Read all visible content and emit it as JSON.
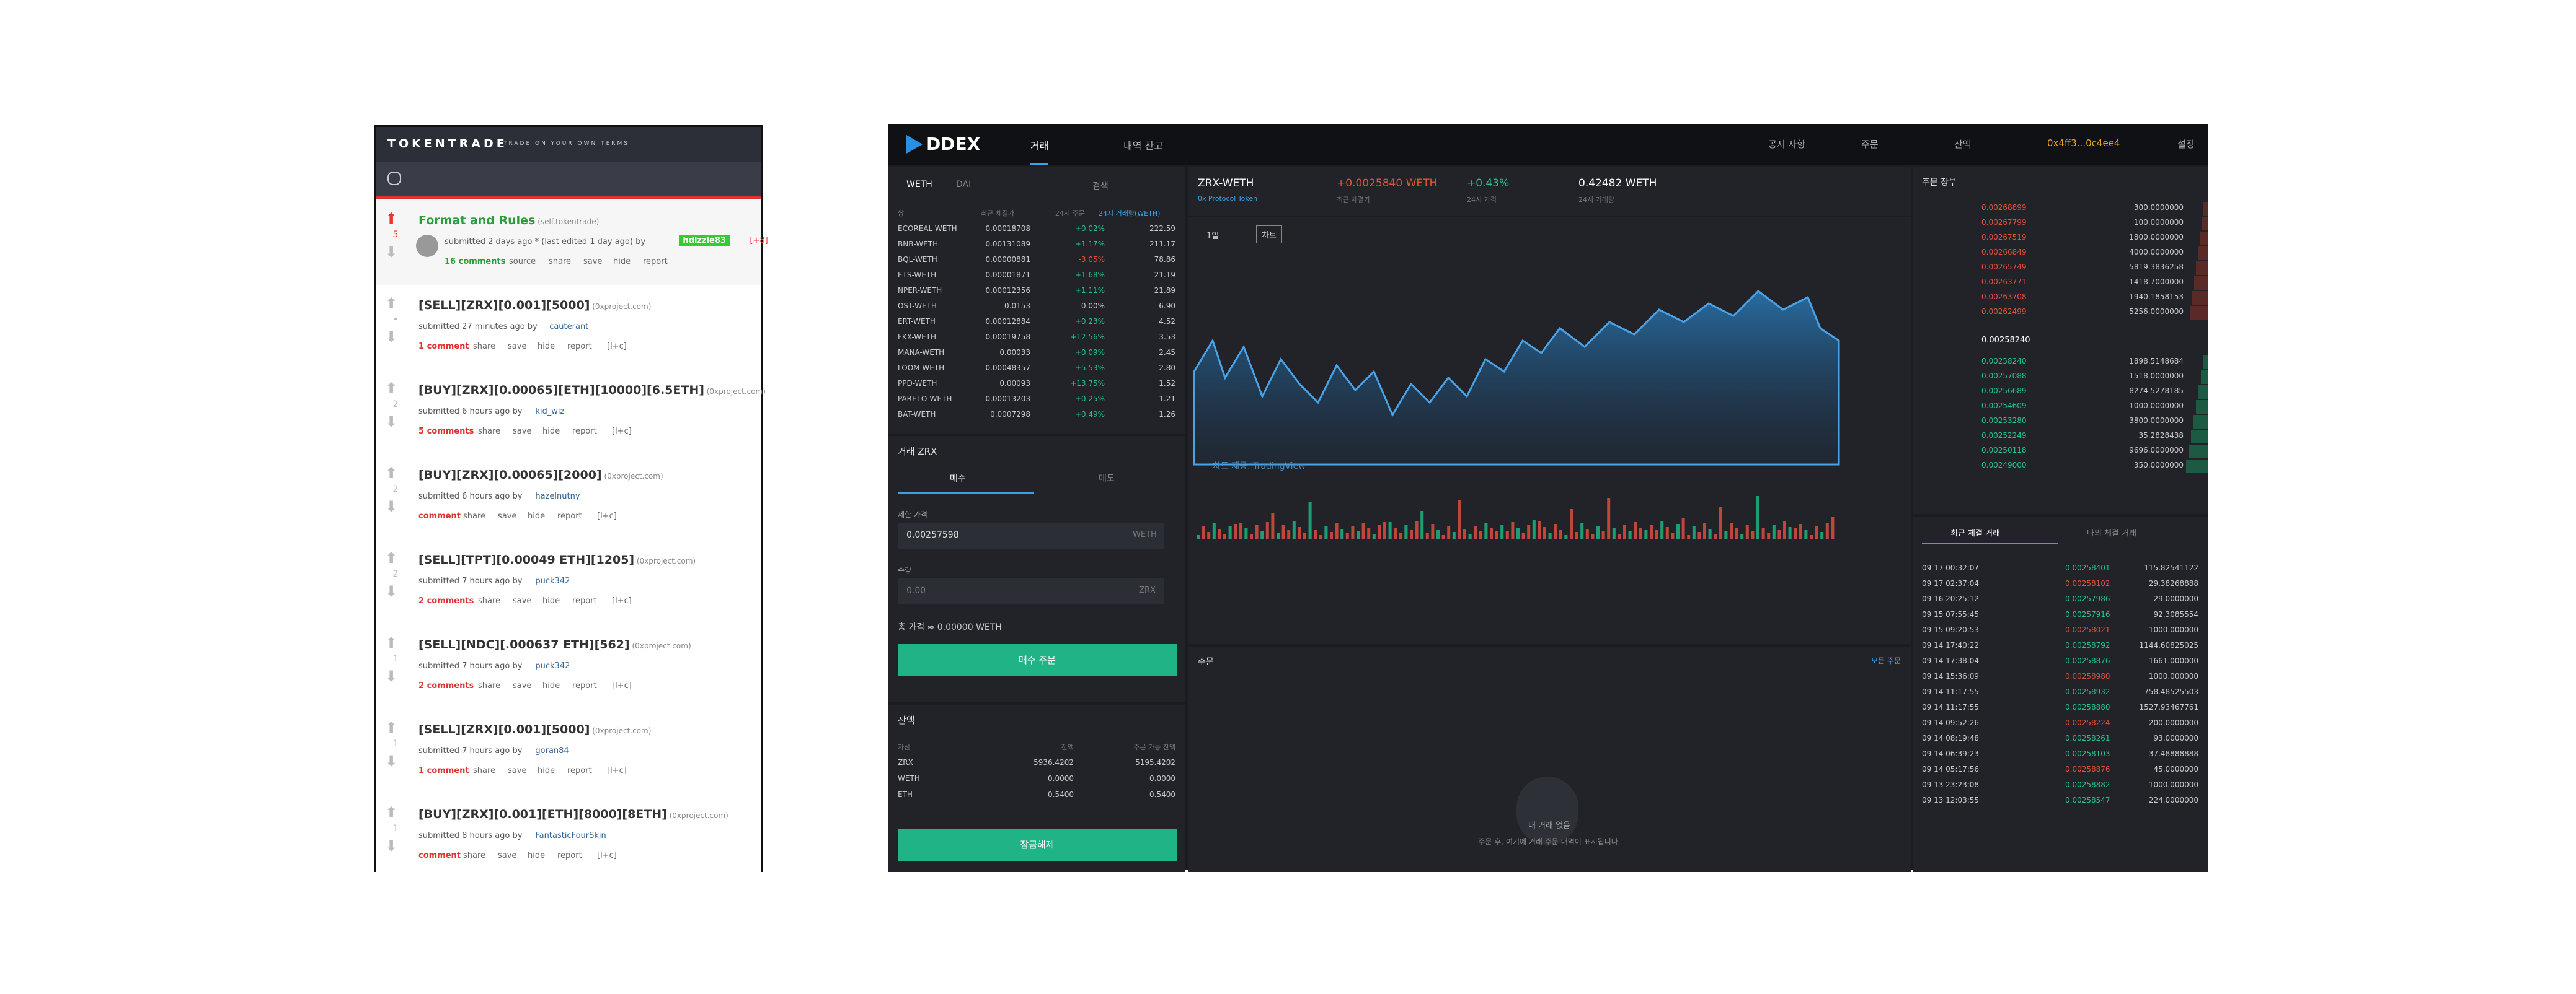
{
  "tokentrade": {
    "brand": "TOKENTRADE",
    "tagline": "TRADE ON YOUR OWN TERMS",
    "posts": [
      {
        "votes": "5",
        "title": "Format and Rules",
        "domain": "(self.tokentrade)",
        "meta": "submitted 2 days ago * (last edited 1 day ago) by",
        "author": "hdizzle83",
        "flair": "[+8]",
        "actions": [
          "16 comments",
          "source",
          "share",
          "save",
          "hide",
          "report"
        ]
      },
      {
        "votes": "•",
        "title": "[SELL][ZRX][0.001][5000]",
        "domain": "(0xproject.com)",
        "meta": "submitted 27 minutes ago by",
        "author": "cauterant",
        "actions": [
          "1 comment",
          "share",
          "save",
          "hide",
          "report",
          "[l+c]"
        ]
      },
      {
        "votes": "2",
        "title": "[BUY][ZRX][0.00065][ETH][10000][6.5ETH]",
        "domain": "(0xproject.com)",
        "meta": "submitted 6 hours ago by",
        "author": "kid_wiz",
        "actions": [
          "5 comments",
          "share",
          "save",
          "hide",
          "report",
          "[l+c]"
        ]
      },
      {
        "votes": "2",
        "title": "[BUY][ZRX][0.00065][2000]",
        "domain": "(0xproject.com)",
        "meta": "submitted 6 hours ago by",
        "author": "hazelnutny",
        "actions": [
          "comment",
          "share",
          "save",
          "hide",
          "report",
          "[l+c]"
        ]
      },
      {
        "votes": "2",
        "title": "[SELL][TPT][0.00049 ETH][1205]",
        "domain": "(0xproject.com)",
        "meta": "submitted 7 hours ago by",
        "author": "puck342",
        "actions": [
          "2 comments",
          "share",
          "save",
          "hide",
          "report",
          "[l+c]"
        ]
      },
      {
        "votes": "1",
        "title": "[SELL][NDC][.000637 ETH][562]",
        "domain": "(0xproject.com)",
        "meta": "submitted 7 hours ago by",
        "author": "puck342",
        "actions": [
          "2 comments",
          "share",
          "save",
          "hide",
          "report",
          "[l+c]"
        ]
      },
      {
        "votes": "1",
        "title": "[SELL][ZRX][0.001][5000]",
        "domain": "(0xproject.com)",
        "meta": "submitted 7 hours ago by",
        "author": "goran84",
        "actions": [
          "1 comment",
          "share",
          "save",
          "hide",
          "report",
          "[l+c]"
        ]
      },
      {
        "votes": "1",
        "title": "[BUY][ZRX][0.001][ETH][8000][8ETH]",
        "domain": "(0xproject.com)",
        "meta": "submitted 8 hours ago by",
        "author": "FantasticFourSkin",
        "actions": [
          "comment",
          "share",
          "save",
          "hide",
          "report",
          "[l+c]"
        ]
      }
    ]
  },
  "ddex": {
    "logo": "DDEX",
    "nav": [
      "거래",
      "내역 잔고"
    ],
    "nav_right": [
      "공지 사항",
      "주문",
      "잔액",
      "0x4ff3...0c4ee4",
      "설정"
    ],
    "market": {
      "tabs": [
        "WETH",
        "DAI"
      ],
      "search": "검색",
      "headers": [
        "쌍",
        "최근 체결가",
        "24시 주문",
        "24시 거래량(WETH)"
      ],
      "rows": [
        [
          "ECOREAL-WETH",
          "0.00018708",
          "+0.02%",
          "222.59"
        ],
        [
          "BNB-WETH",
          "0.00131089",
          "+1.17%",
          "211.17"
        ],
        [
          "BQL-WETH",
          "0.00000881",
          "-3.05%",
          "78.86"
        ],
        [
          "ETS-WETH",
          "0.00001871",
          "+1.68%",
          "21.19"
        ],
        [
          "NPER-WETH",
          "0.00012356",
          "+1.11%",
          "21.89"
        ],
        [
          "OST-WETH",
          "0.0153",
          "0.00%",
          "6.90"
        ],
        [
          "ERT-WETH",
          "0.00012884",
          "+0.23%",
          "4.52"
        ],
        [
          "FKX-WETH",
          "0.00019758",
          "+12.56%",
          "3.53"
        ],
        [
          "MANA-WETH",
          "0.00033",
          "+0.09%",
          "2.45"
        ],
        [
          "LOOM-WETH",
          "0.00048357",
          "+5.53%",
          "2.80"
        ],
        [
          "PPD-WETH",
          "0.00093",
          "+13.75%",
          "1.52"
        ],
        [
          "PARETO-WETH",
          "0.00013203",
          "+0.25%",
          "1.21"
        ],
        [
          "BAT-WETH",
          "0.0007298",
          "+0.49%",
          "1.26"
        ]
      ]
    },
    "order_form": {
      "title": "거래 ZRX",
      "tabs": [
        "매수",
        "매도"
      ],
      "price_label": "제한 가격",
      "price": "0.00257598",
      "price_unit": "WETH",
      "amount_label": "수량",
      "amount": "0.00",
      "amount_unit": "ZRX",
      "total": "총 가격 ≈ 0.00000 WETH",
      "button": "매수 주문"
    },
    "balance": {
      "title": "잔액",
      "headers": [
        "자산",
        "잔액",
        "주문 가능 잔액"
      ],
      "rows": [
        [
          "ZRX",
          "5936.4202",
          "5195.4202"
        ],
        [
          "WETH",
          "0.0000",
          "0.0000"
        ],
        [
          "ETH",
          "0.5400",
          "0.5400"
        ]
      ],
      "button": "잠금해제"
    },
    "ticker": {
      "pair": "ZRX-WETH",
      "pair_sub": "0x Protocol Token",
      "last": "+0.0025840 WETH",
      "last_sub": "최근 체결가",
      "change": "+0.43%",
      "change_sub": "24시 가격",
      "volume": "0.42482 WETH",
      "volume_sub": "24시 거래량"
    },
    "chart": {
      "intervals": [
        "1일",
        "차트"
      ],
      "watermark": "차트 제공: TradingView"
    },
    "orders": {
      "title": "주문",
      "link": "모든 주문",
      "empty": "내 거래 없음",
      "hint": "주문 후, 여기에 거래 주문 내역이 표시됩니다."
    },
    "orderbook": {
      "title": "주문 장부",
      "asks": [
        [
          "0.00268899",
          "300.0000000"
        ],
        [
          "0.00267799",
          "100.0000000"
        ],
        [
          "0.00267519",
          "1800.0000000"
        ],
        [
          "0.00266849",
          "4000.0000000"
        ],
        [
          "0.00265749",
          "5819.3836258"
        ],
        [
          "0.00263771",
          "1418.7000000"
        ],
        [
          "0.00263708",
          "1940.1858153"
        ],
        [
          "0.00262499",
          "5256.0000000"
        ]
      ],
      "spread": "0.00258240",
      "bids": [
        [
          "0.00258240",
          "1898.5148684"
        ],
        [
          "0.00257088",
          "1518.0000000"
        ],
        [
          "0.00256689",
          "8274.5278185"
        ],
        [
          "0.00254609",
          "1000.0000000"
        ],
        [
          "0.00253280",
          "3800.0000000"
        ],
        [
          "0.00252249",
          "35.2828438"
        ],
        [
          "0.00250118",
          "9696.0000000"
        ],
        [
          "0.00249000",
          "350.0000000"
        ]
      ]
    },
    "trades": {
      "tabs": [
        "최근 체결 거래",
        "나의 체결 거래"
      ],
      "rows": [
        [
          "09 17 00:32:07",
          "0.00258401",
          "115.82541122"
        ],
        [
          "09 17 02:37:04",
          "0.00258102",
          "29.38268888"
        ],
        [
          "09 16 20:25:12",
          "0.00257986",
          "29.0000000"
        ],
        [
          "09 15 07:55:45",
          "0.00257916",
          "92.3085554"
        ],
        [
          "09 15 09:20:53",
          "0.00258021",
          "1000.000000"
        ],
        [
          "09 14 17:40:22",
          "0.00258792",
          "1144.60825025"
        ],
        [
          "09 14 17:38:04",
          "0.00258876",
          "1661.000000"
        ],
        [
          "09 14 15:36:09",
          "0.00258980",
          "1000.000000"
        ],
        [
          "09 14 11:17:55",
          "0.00258932",
          "758.48525503"
        ],
        [
          "09 14 11:17:55",
          "0.00258880",
          "1527.93467761"
        ],
        [
          "09 14 09:52:26",
          "0.00258224",
          "200.0000000"
        ],
        [
          "09 14 08:19:48",
          "0.00258261",
          "93.0000000"
        ],
        [
          "09 14 06:39:23",
          "0.00258103",
          "37.48888888"
        ],
        [
          "09 14 05:17:56",
          "0.00258876",
          "45.0000000"
        ],
        [
          "09 13 23:23:08",
          "0.00258882",
          "1000.000000"
        ],
        [
          "09 13 12:03:55",
          "0.00258547",
          "224.0000000"
        ]
      ]
    }
  }
}
